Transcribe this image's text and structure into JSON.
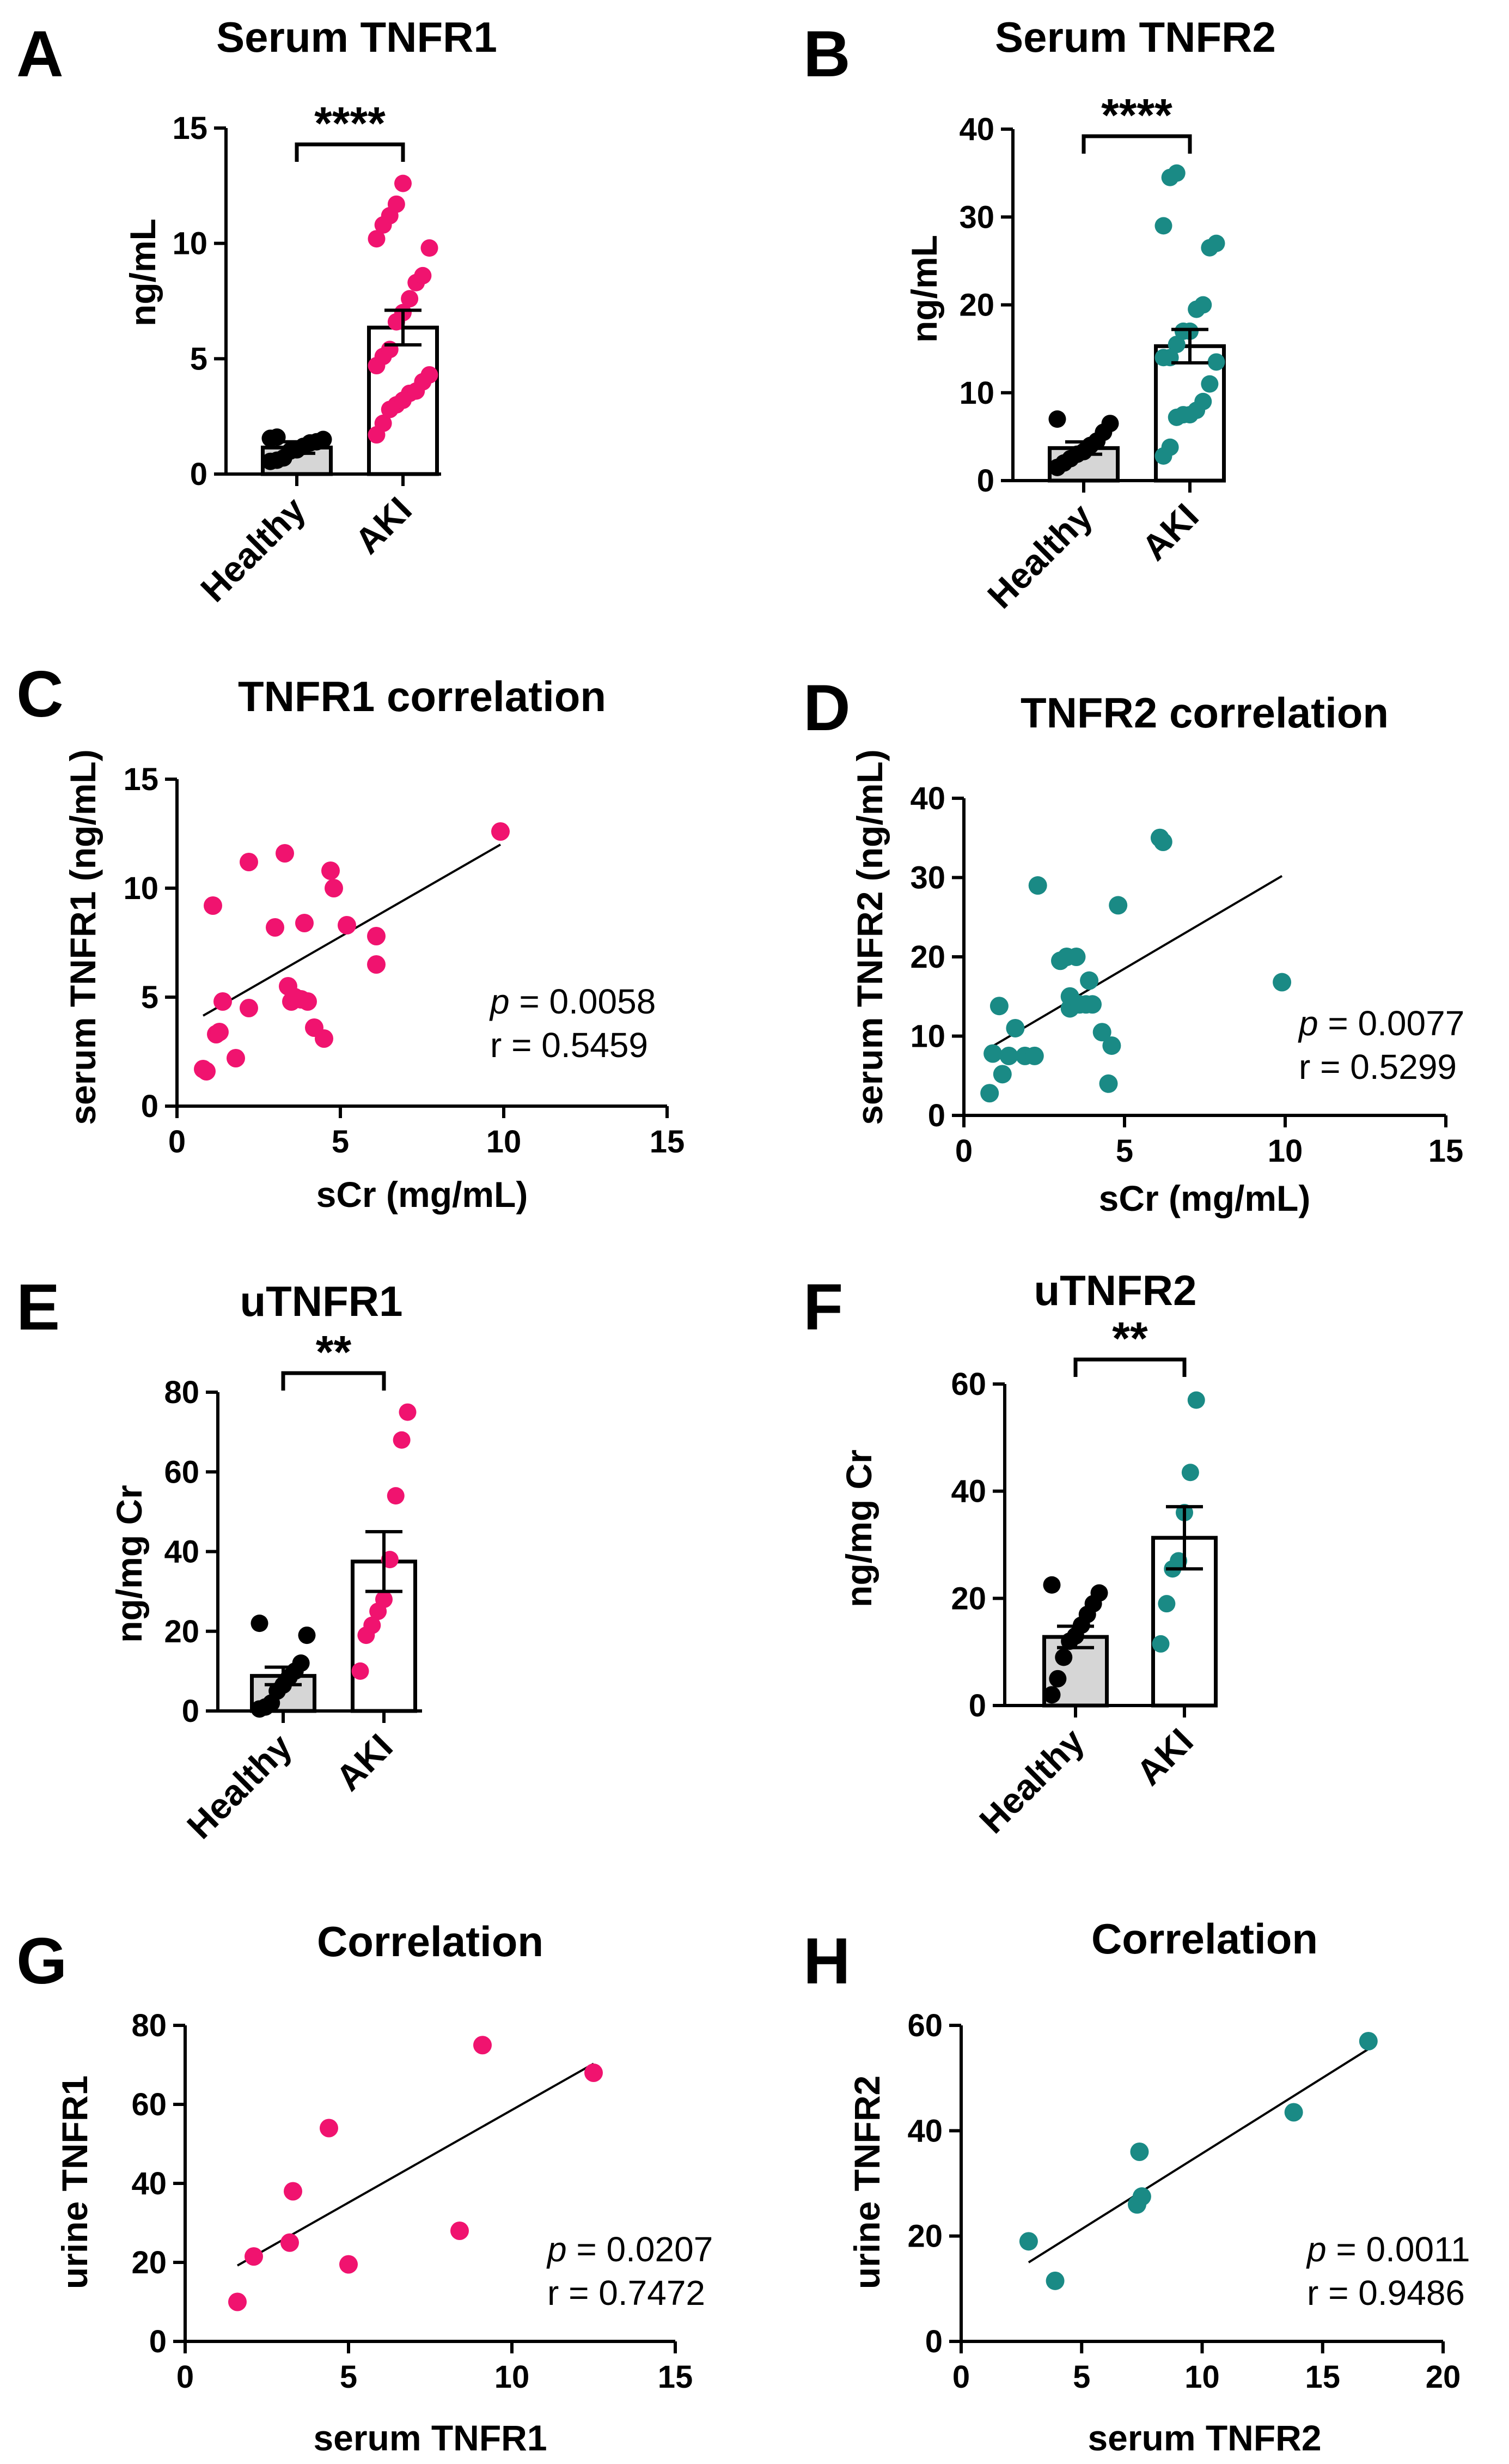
{
  "colors": {
    "pink": "#f0136f",
    "teal": "#1a8a85",
    "black": "#000000",
    "healthy_bar_fill": "#d6d6d6"
  },
  "panels": [
    {
      "letter": "A",
      "title": "Serum TNFR1",
      "ylabel": "ng/mL",
      "xlabel": "",
      "yticks": [
        "0",
        "5",
        "10",
        "15"
      ],
      "categories": [
        "Healthy",
        "AKI"
      ],
      "significance": "****"
    },
    {
      "letter": "B",
      "title": "Serum TNFR2",
      "ylabel": "ng/mL",
      "xlabel": "",
      "yticks": [
        "0",
        "10",
        "20",
        "30",
        "40"
      ],
      "categories": [
        "Healthy",
        "AKI"
      ],
      "significance": "****"
    },
    {
      "letter": "C",
      "title": "TNFR1 correlation",
      "ylabel": "serum TNFR1 (ng/mL)",
      "xlabel": "sCr (mg/mL)",
      "yticks": [
        "0",
        "5",
        "10",
        "15"
      ],
      "xticks": [
        "0",
        "5",
        "10",
        "15"
      ],
      "p_label": "p",
      "p_value": " = 0.0058",
      "r_text": "r = 0.5459"
    },
    {
      "letter": "D",
      "title": "TNFR2 correlation",
      "ylabel": "serum TNFR2 (ng/mL)",
      "xlabel": "sCr (mg/mL)",
      "yticks": [
        "0",
        "10",
        "20",
        "30",
        "40"
      ],
      "xticks": [
        "0",
        "5",
        "10",
        "15"
      ],
      "p_label": "p",
      "p_value": " = 0.0077",
      "r_text": "r = 0.5299"
    },
    {
      "letter": "E",
      "title": "uTNFR1",
      "ylabel": "ng/mg Cr",
      "xlabel": "",
      "yticks": [
        "0",
        "20",
        "40",
        "60",
        "80"
      ],
      "categories": [
        "Healthy",
        "AKI"
      ],
      "significance": "**"
    },
    {
      "letter": "F",
      "title": "uTNFR2",
      "ylabel": "ng/mg Cr",
      "xlabel": "",
      "yticks": [
        "0",
        "20",
        "40",
        "60"
      ],
      "categories": [
        "Healthy",
        "AKI"
      ],
      "significance": "**"
    },
    {
      "letter": "G",
      "title": "Correlation",
      "ylabel": "urine TNFR1",
      "xlabel": "serum TNFR1",
      "yticks": [
        "0",
        "20",
        "40",
        "60",
        "80"
      ],
      "xticks": [
        "0",
        "5",
        "10",
        "15"
      ],
      "p_label": "p",
      "p_value": " = 0.0207",
      "r_text": "r = 0.7472"
    },
    {
      "letter": "H",
      "title": "Correlation",
      "ylabel": "urine TNFR2",
      "xlabel": "serum TNFR2",
      "yticks": [
        "0",
        "20",
        "40",
        "60"
      ],
      "xticks": [
        "0",
        "5",
        "10",
        "15",
        "20"
      ],
      "p_label": "p",
      "p_value": " = 0.0011",
      "r_text": "r = 0.9486"
    }
  ],
  "chart_data": [
    {
      "panel": "A",
      "type": "bar",
      "title": "Serum TNFR1",
      "ylabel": "ng/mL",
      "ylim": [
        0,
        15
      ],
      "categories": [
        "Healthy",
        "AKI"
      ],
      "means": [
        1.15,
        6.35
      ],
      "sem": [
        0.25,
        0.75
      ],
      "points": [
        [
          0.55,
          0.6,
          0.7,
          1.0,
          1.05,
          1.2,
          1.35,
          1.4,
          1.5,
          1.55,
          1.6
        ],
        [
          1.7,
          2.2,
          2.8,
          3.0,
          3.2,
          3.5,
          3.6,
          4.0,
          4.3,
          4.7,
          5.1,
          5.4,
          6.6,
          7.0,
          7.6,
          8.3,
          8.6,
          9.8,
          10.2,
          10.8,
          11.2,
          11.7,
          12.6
        ]
      ],
      "color": "pink"
    },
    {
      "panel": "B",
      "type": "bar",
      "title": "Serum TNFR2",
      "ylabel": "ng/mL",
      "ylim": [
        0,
        40
      ],
      "categories": [
        "Healthy",
        "AKI"
      ],
      "means": [
        3.7,
        15.3
      ],
      "sem": [
        0.7,
        1.9
      ],
      "points": [
        [
          1.5,
          2.0,
          2.5,
          3.0,
          3.3,
          4.0,
          4.5,
          5.5,
          6.5,
          7.0
        ],
        [
          2.8,
          3.8,
          7.2,
          7.5,
          7.5,
          8.0,
          9.0,
          11.0,
          13.5,
          14.0,
          14.0,
          15.5,
          17.0,
          17.0,
          19.5,
          20.0,
          26.5,
          27.0,
          29.0,
          34.5,
          35.0
        ]
      ],
      "color": "teal"
    },
    {
      "panel": "C",
      "type": "scatter",
      "title": "TNFR1 correlation",
      "xlabel": "sCr (mg/mL)",
      "ylabel": "serum TNFR1 (ng/mL)",
      "xlim": [
        0,
        15
      ],
      "ylim": [
        0,
        15
      ],
      "x": [
        0.8,
        0.9,
        1.1,
        1.2,
        1.3,
        1.4,
        1.8,
        2.2,
        2.2,
        3.0,
        3.3,
        3.4,
        3.5,
        3.6,
        3.8,
        3.9,
        4.0,
        4.2,
        4.5,
        4.7,
        4.8,
        5.2,
        6.1,
        6.1,
        9.9
      ],
      "y": [
        1.7,
        1.6,
        9.2,
        3.3,
        3.4,
        4.8,
        2.2,
        11.2,
        4.5,
        8.2,
        11.6,
        5.5,
        4.8,
        5.0,
        4.9,
        8.4,
        4.8,
        3.6,
        3.1,
        10.8,
        10.0,
        8.3,
        7.8,
        6.5,
        12.6
      ],
      "fit": {
        "x": [
          0.8,
          9.9
        ],
        "y": [
          4.15,
          12.0
        ]
      },
      "p": "0.0058",
      "r": "0.5459",
      "color": "pink"
    },
    {
      "panel": "D",
      "type": "scatter",
      "title": "TNFR2 correlation",
      "xlabel": "sCr (mg/mL)",
      "ylabel": "serum TNFR2 (ng/mL)",
      "xlim": [
        0,
        15
      ],
      "ylim": [
        0,
        40
      ],
      "x": [
        0.8,
        0.9,
        1.1,
        1.2,
        1.4,
        1.6,
        1.9,
        2.2,
        2.3,
        3.0,
        3.2,
        3.3,
        3.3,
        3.5,
        3.6,
        3.8,
        3.9,
        4.0,
        4.3,
        4.5,
        4.6,
        4.8,
        6.1,
        6.2,
        9.9
      ],
      "y": [
        2.8,
        7.8,
        13.8,
        5.2,
        7.5,
        11.0,
        7.5,
        7.5,
        29.0,
        19.5,
        20.0,
        13.5,
        15.0,
        20.0,
        14.0,
        14.0,
        17.0,
        14.0,
        10.5,
        4.0,
        8.8,
        26.5,
        35.0,
        34.5,
        16.8
      ],
      "fit": {
        "x": [
          0.8,
          9.9
        ],
        "y": [
          8.5,
          30.2
        ]
      },
      "p": "0.0077",
      "r": "0.5299",
      "color": "teal"
    },
    {
      "panel": "E",
      "type": "bar",
      "title": "uTNFR1",
      "ylabel": "ng/mg Cr",
      "ylim": [
        0,
        80
      ],
      "categories": [
        "Healthy",
        "AKI"
      ],
      "means": [
        8.8,
        37.5
      ],
      "sem": [
        2.2,
        7.5
      ],
      "points": [
        [
          0.5,
          1.0,
          2.0,
          5.0,
          6.5,
          8.5,
          10.0,
          12.0,
          19.0,
          22.0
        ],
        [
          10.0,
          19.0,
          21.5,
          25.0,
          28.0,
          38.0,
          54.0,
          68.0,
          75.0
        ]
      ],
      "color": "pink"
    },
    {
      "panel": "F",
      "type": "bar",
      "title": "uTNFR2",
      "ylabel": "ng/mg Cr",
      "ylim": [
        0,
        60
      ],
      "categories": [
        "Healthy",
        "AKI"
      ],
      "means": [
        12.8,
        31.3
      ],
      "sem": [
        2.0,
        5.8
      ],
      "points": [
        [
          2.0,
          5.0,
          9.0,
          12.0,
          13.0,
          15.0,
          17.0,
          19.0,
          21.0,
          22.5
        ],
        [
          11.5,
          19.0,
          25.5,
          27.0,
          36.0,
          43.5,
          57.0
        ]
      ],
      "color": "teal"
    },
    {
      "panel": "G",
      "type": "scatter",
      "title": "Correlation",
      "xlabel": "serum TNFR1",
      "ylabel": "urine TNFR1",
      "xlim": [
        0,
        15
      ],
      "ylim": [
        0,
        80
      ],
      "x": [
        1.6,
        2.1,
        3.2,
        3.3,
        4.4,
        5.0,
        8.4,
        9.1,
        12.5
      ],
      "y": [
        10.0,
        21.5,
        25.0,
        38.0,
        54.0,
        19.5,
        28.0,
        75.0,
        68.0
      ],
      "fit": {
        "x": [
          1.6,
          12.5
        ],
        "y": [
          19.2,
          70.3
        ]
      },
      "p": "0.0207",
      "r": "0.7472",
      "color": "pink"
    },
    {
      "panel": "H",
      "type": "scatter",
      "title": "Correlation",
      "xlabel": "serum TNFR2",
      "ylabel": "urine TNFR2",
      "xlim": [
        0,
        20
      ],
      "ylim": [
        0,
        60
      ],
      "x": [
        2.8,
        3.9,
        7.3,
        7.4,
        7.5,
        13.8,
        16.9
      ],
      "y": [
        19.0,
        11.5,
        26.0,
        36.0,
        27.5,
        43.5,
        57.0
      ],
      "fit": {
        "x": [
          2.8,
          16.9
        ],
        "y": [
          15.0,
          55.5
        ]
      },
      "p": "0.0011",
      "r": "0.9486",
      "color": "teal"
    }
  ]
}
